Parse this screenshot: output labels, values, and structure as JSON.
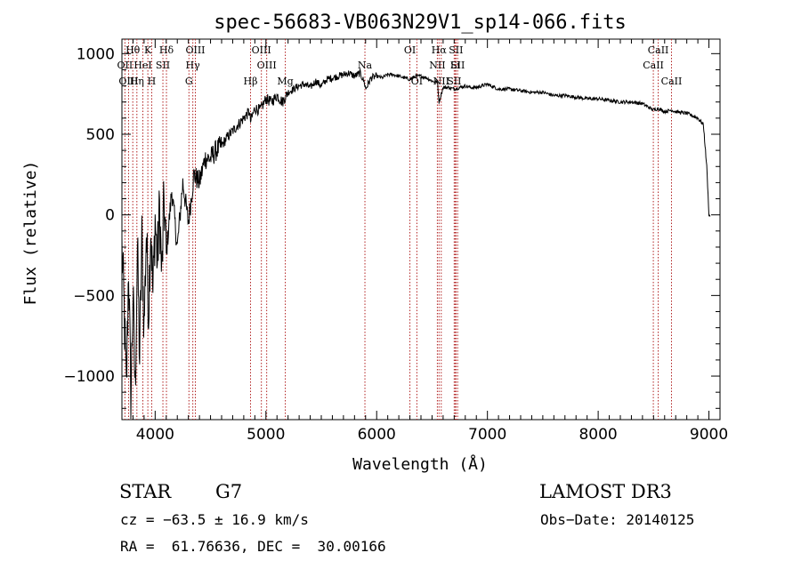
{
  "chart_data": {
    "type": "line",
    "title": "spec-56683-VB063N29V1_sp14-066.fits",
    "xlabel": "Wavelength (Å)",
    "ylabel": "Flux (relative)",
    "xlim": [
      3700,
      9100
    ],
    "ylim": [
      -1270,
      1090
    ],
    "x_ticks": [
      4000,
      5000,
      6000,
      7000,
      8000,
      9000
    ],
    "x_tick_labels": [
      "4000",
      "5000",
      "6000",
      "7000",
      "8000",
      "9000"
    ],
    "y_ticks": [
      1000,
      500,
      0,
      -500,
      -1000
    ],
    "y_tick_labels": [
      "1000",
      "500",
      "0",
      "−500",
      "−1000"
    ],
    "series": [
      {
        "name": "flux",
        "x": [
          3700,
          3720,
          3740,
          3760,
          3780,
          3800,
          3820,
          3840,
          3860,
          3880,
          3900,
          3920,
          3940,
          3960,
          3980,
          4000,
          4020,
          4040,
          4060,
          4080,
          4100,
          4150,
          4200,
          4250,
          4300,
          4350,
          4400,
          4450,
          4500,
          4550,
          4600,
          4650,
          4700,
          4750,
          4800,
          4850,
          4861,
          4900,
          4950,
          5000,
          5050,
          5100,
          5150,
          5200,
          5250,
          5300,
          5350,
          5400,
          5450,
          5500,
          5550,
          5600,
          5650,
          5700,
          5750,
          5800,
          5850,
          5890,
          5900,
          5950,
          6000,
          6050,
          6100,
          6150,
          6200,
          6250,
          6300,
          6350,
          6400,
          6450,
          6500,
          6550,
          6563,
          6600,
          6650,
          6700,
          6750,
          6800,
          6850,
          6900,
          6950,
          7000,
          7100,
          7200,
          7300,
          7400,
          7500,
          7600,
          7700,
          7800,
          7900,
          8000,
          8100,
          8200,
          8300,
          8400,
          8498,
          8542,
          8600,
          8662,
          8700,
          8800,
          8900,
          8950,
          8980,
          9000,
          9010
        ],
        "y": [
          -200,
          -600,
          -1100,
          -300,
          -1150,
          -500,
          -1100,
          -200,
          -900,
          -150,
          -700,
          -100,
          -600,
          -50,
          -500,
          -20,
          -300,
          50,
          -400,
          100,
          -250,
          150,
          -200,
          200,
          -50,
          250,
          200,
          350,
          350,
          400,
          430,
          480,
          520,
          560,
          600,
          640,
          580,
          660,
          650,
          720,
          700,
          740,
          700,
          760,
          780,
          800,
          810,
          790,
          830,
          800,
          840,
          850,
          860,
          870,
          880,
          860,
          880,
          820,
          780,
          850,
          860,
          850,
          870,
          870,
          860,
          850,
          840,
          860,
          860,
          850,
          830,
          820,
          700,
          790,
          790,
          780,
          790,
          800,
          790,
          790,
          800,
          810,
          780,
          780,
          770,
          760,
          760,
          740,
          740,
          730,
          720,
          720,
          710,
          700,
          700,
          690,
          650,
          660,
          640,
          650,
          640,
          630,
          600,
          560,
          300,
          0,
          -10
        ]
      }
    ],
    "lines": [
      {
        "label": "Hθ",
        "wavelength": 3798,
        "row": 0
      },
      {
        "label": "OII",
        "wavelength": 3727,
        "row": 1
      },
      {
        "label": "OIII",
        "wavelength": 3760,
        "row": 2
      },
      {
        "label": "K",
        "wavelength": 3934,
        "row": 0
      },
      {
        "label": "HeI",
        "wavelength": 3889,
        "row": 1
      },
      {
        "label": "Hη",
        "wavelength": 3835,
        "row": 2
      },
      {
        "label": "H",
        "wavelength": 3969,
        "row": 2
      },
      {
        "label": "SII",
        "wavelength": 4070,
        "row": 1
      },
      {
        "label": "Hδ",
        "wavelength": 4102,
        "row": 0
      },
      {
        "label": "OIII",
        "wavelength": 4363,
        "row": 0
      },
      {
        "label": "Hγ",
        "wavelength": 4340,
        "row": 1
      },
      {
        "label": "G",
        "wavelength": 4305,
        "row": 2
      },
      {
        "label": "OIII",
        "wavelength": 4959,
        "row": 0
      },
      {
        "label": "OIII",
        "wavelength": 5007,
        "row": 1
      },
      {
        "label": "Hβ",
        "wavelength": 4861,
        "row": 2
      },
      {
        "label": "Mg",
        "wavelength": 5175,
        "row": 2
      },
      {
        "label": "Na",
        "wavelength": 5894,
        "row": 1
      },
      {
        "label": "OI",
        "wavelength": 6300,
        "row": 0
      },
      {
        "label": "OI",
        "wavelength": 6363,
        "row": 2
      },
      {
        "label": "Hα",
        "wavelength": 6563,
        "row": 0
      },
      {
        "label": "NII",
        "wavelength": 6548,
        "row": 1
      },
      {
        "label": "NII",
        "wavelength": 6583,
        "row": 2
      },
      {
        "label": "SII",
        "wavelength": 6716,
        "row": 0
      },
      {
        "label": "SII",
        "wavelength": 6731,
        "row": 1
      },
      {
        "label": "Li",
        "wavelength": 6708,
        "row": 1
      },
      {
        "label": "SII",
        "wavelength": 6700,
        "row": 2
      },
      {
        "label": "CaII",
        "wavelength": 8542,
        "row": 0
      },
      {
        "label": "CaII",
        "wavelength": 8498,
        "row": 1
      },
      {
        "label": "CaII",
        "wavelength": 8662,
        "row": 2
      }
    ],
    "colors": {
      "spectrum": "#000000",
      "lines": "#b22222",
      "axes": "#000000"
    }
  },
  "info": {
    "class": "STAR",
    "subclass": "G7",
    "survey": "LAMOST DR3",
    "cz": "cz = −63.5 ± 16.9 km/s",
    "obs_date": "Obs−Date: 20140125",
    "coords": "RA =  61.76636, DEC =  30.00166"
  }
}
